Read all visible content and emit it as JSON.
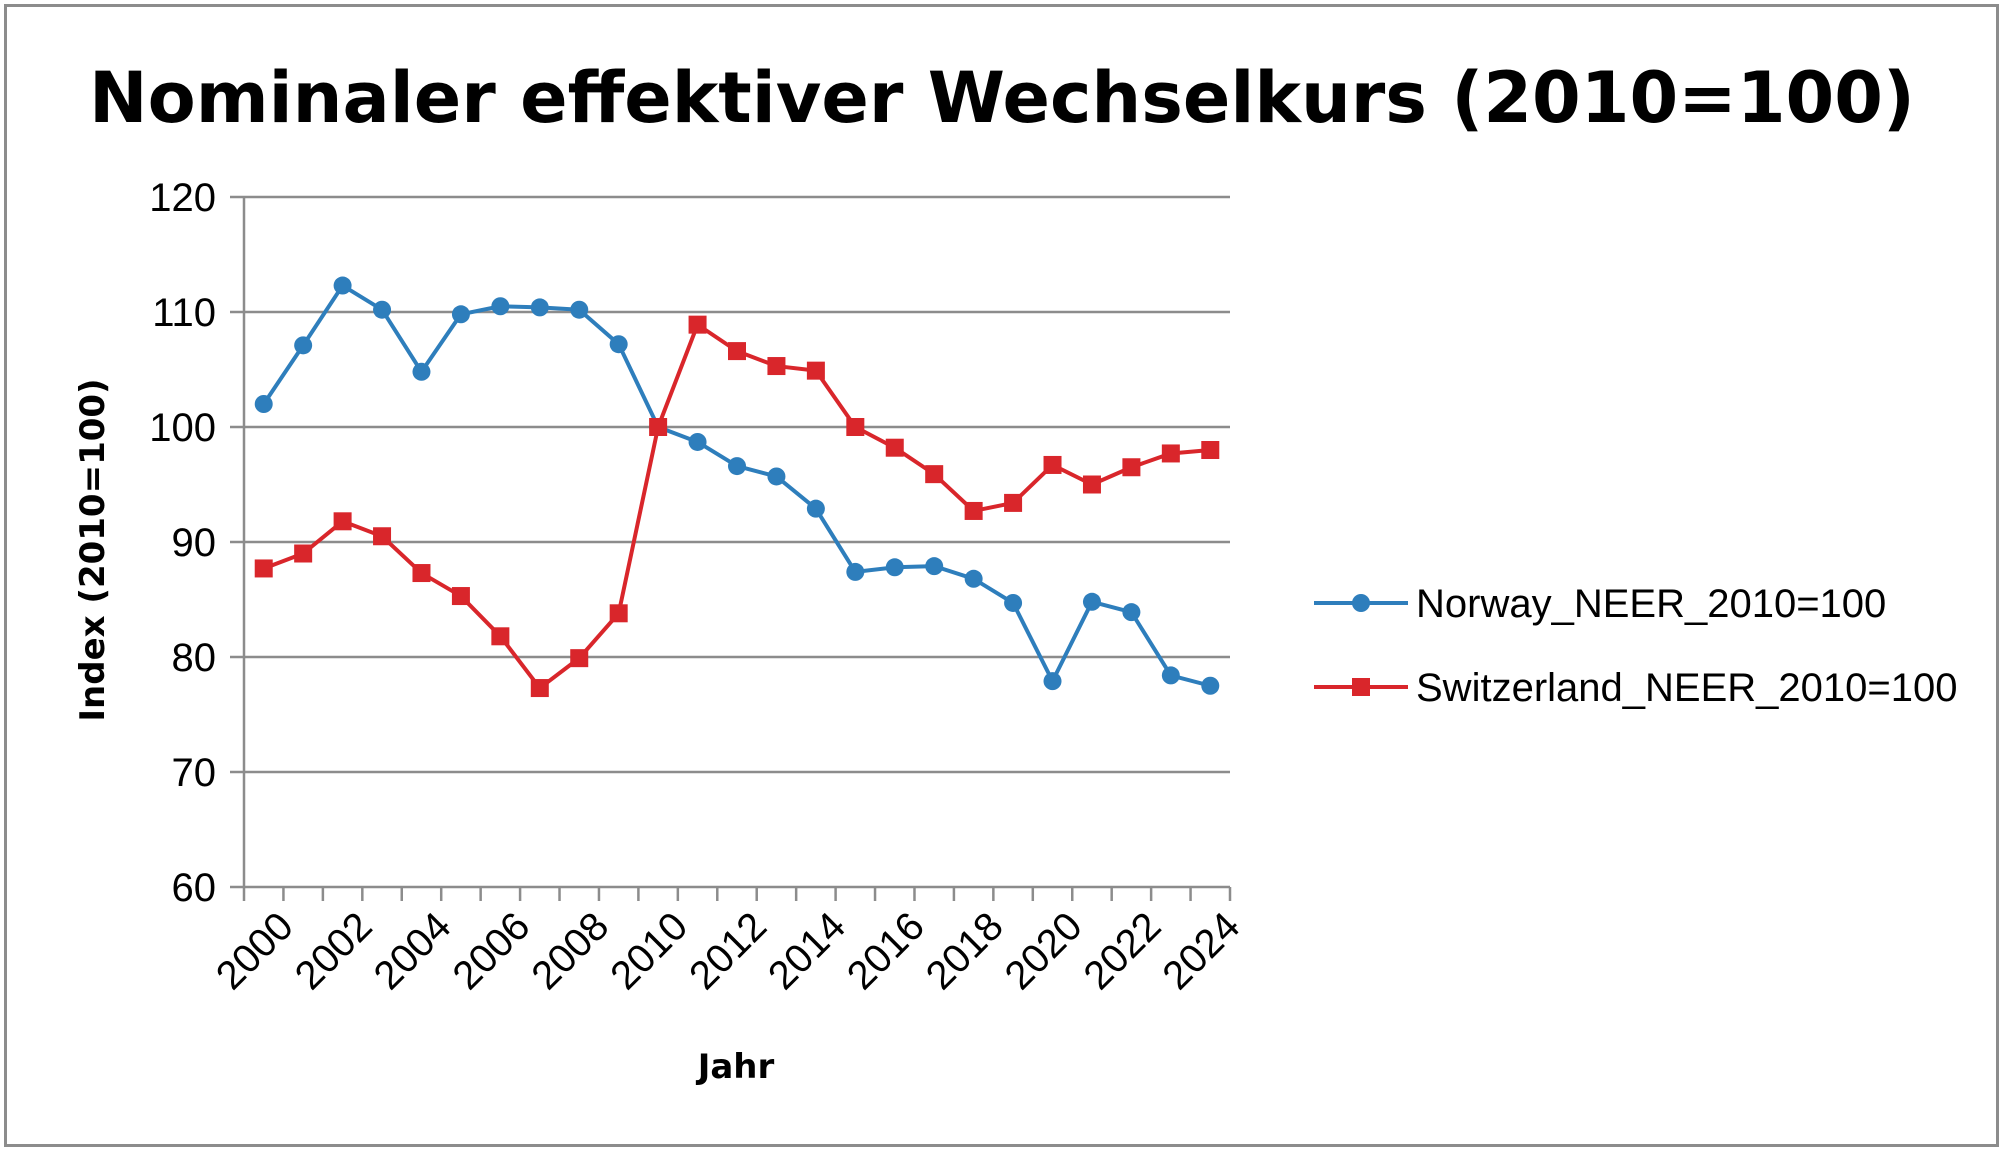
{
  "chart_data": {
    "type": "line",
    "title": "Nominaler effektiver Wechselkurs (2010=100)",
    "xlabel": "Jahr",
    "ylabel": "Index (2010=100)",
    "ylim": [
      60,
      120
    ],
    "yticks": [
      60,
      70,
      80,
      90,
      100,
      110,
      120
    ],
    "xticks": [
      2000,
      2002,
      2004,
      2006,
      2008,
      2010,
      2012,
      2014,
      2016,
      2018,
      2020,
      2022,
      2024
    ],
    "x": [
      2000,
      2001,
      2002,
      2003,
      2004,
      2005,
      2006,
      2007,
      2008,
      2009,
      2010,
      2011,
      2012,
      2013,
      2014,
      2015,
      2016,
      2017,
      2018,
      2019,
      2020,
      2021,
      2022,
      2023,
      2024
    ],
    "grid": "horizontal",
    "legend_position": "right",
    "series": [
      {
        "name": "Norway_NEER_2010=100",
        "color": "#2e7ebc",
        "marker": "circle",
        "values": [
          102.0,
          107.1,
          112.3,
          110.2,
          104.8,
          109.8,
          110.5,
          110.4,
          110.2,
          107.2,
          100.0,
          98.7,
          96.6,
          95.7,
          92.9,
          87.4,
          87.8,
          87.9,
          86.8,
          84.7,
          77.9,
          84.8,
          83.9,
          78.4,
          77.5
        ]
      },
      {
        "name": "Switzerland_NEER_2010=100",
        "color": "#d9262b",
        "marker": "square",
        "values": [
          87.7,
          89.0,
          91.8,
          90.5,
          87.3,
          85.3,
          81.8,
          77.3,
          79.9,
          83.8,
          100.0,
          108.9,
          106.6,
          105.3,
          104.9,
          100.0,
          98.2,
          95.9,
          92.7,
          93.4,
          96.7,
          95.0,
          96.5,
          97.7,
          98.0
        ]
      }
    ]
  }
}
